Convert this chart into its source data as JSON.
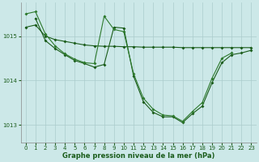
{
  "background_color": "#cce8e8",
  "grid_color": "#aacccc",
  "line_color1": "#1a5c1a",
  "line_color2": "#2d7a2d",
  "xlabel": "Graphe pression niveau de la mer (hPa)",
  "xlim": [
    -0.5,
    23.5
  ],
  "ylim": [
    1012.6,
    1015.75
  ],
  "yticks": [
    1013,
    1014,
    1015
  ],
  "xticks": [
    0,
    1,
    2,
    3,
    4,
    5,
    6,
    7,
    8,
    9,
    10,
    11,
    12,
    13,
    14,
    15,
    16,
    17,
    18,
    19,
    20,
    21,
    22,
    23
  ],
  "s1_x": [
    0,
    1,
    2,
    3,
    4,
    5,
    6,
    7,
    8,
    9,
    10,
    11,
    12,
    13,
    14,
    15,
    16,
    17,
    18,
    19,
    20,
    21,
    22,
    23
  ],
  "s1_y": [
    1015.2,
    1015.25,
    1015.0,
    1014.92,
    1014.88,
    1014.84,
    1014.8,
    1014.78,
    1014.77,
    1014.77,
    1014.76,
    1014.76,
    1014.75,
    1014.75,
    1014.75,
    1014.75,
    1014.74,
    1014.74,
    1014.74,
    1014.74,
    1014.74,
    1014.74,
    1014.74,
    1014.74
  ],
  "s2_x": [
    0,
    1,
    2,
    3,
    4,
    5,
    6,
    7,
    8,
    9,
    10,
    11,
    12,
    13,
    14,
    15,
    16,
    17,
    18,
    19,
    20,
    21
  ],
  "s2_y": [
    1015.5,
    1015.55,
    1015.05,
    1014.78,
    1014.6,
    1014.48,
    1014.4,
    1014.38,
    1015.45,
    1015.15,
    1015.1,
    1014.15,
    1013.6,
    1013.35,
    1013.22,
    1013.2,
    1013.08,
    1013.3,
    1013.5,
    1014.05,
    1014.5,
    1014.62
  ],
  "s3_x": [
    1,
    2,
    3,
    4,
    5,
    6,
    7,
    8,
    9,
    10,
    11,
    12,
    13,
    14,
    15,
    16,
    17,
    18,
    19,
    20,
    21,
    22,
    23
  ],
  "s3_y": [
    1015.4,
    1014.9,
    1014.72,
    1014.58,
    1014.45,
    1014.38,
    1014.3,
    1014.36,
    1015.2,
    1015.18,
    1014.1,
    1013.52,
    1013.28,
    1013.18,
    1013.18,
    1013.05,
    1013.25,
    1013.42,
    1013.95,
    1014.4,
    1014.58,
    1014.62,
    1014.68
  ]
}
